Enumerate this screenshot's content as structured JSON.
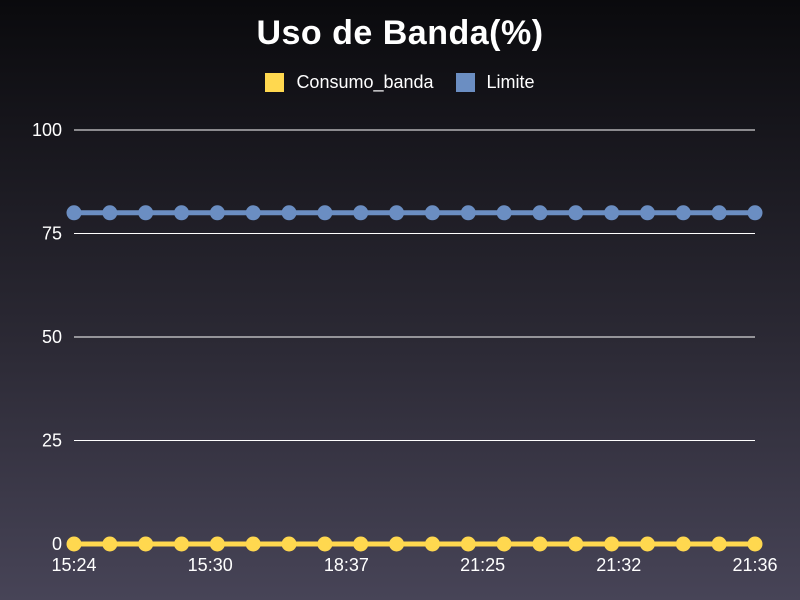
{
  "chart_data": {
    "type": "line",
    "title": "Uso de Banda(%)",
    "xlabel": "",
    "ylabel": "",
    "ylim": [
      0,
      100
    ],
    "yticks": [
      0,
      25,
      50,
      75,
      100
    ],
    "x_tick_labels": [
      "15:24",
      "15:30",
      "18:37",
      "21:25",
      "21:32",
      "21:36"
    ],
    "point_count": 20,
    "grid": true,
    "legend_position": "top-center",
    "series": [
      {
        "name": "Consumo_banda",
        "color": "#ffd84f",
        "values": [
          0,
          0,
          0,
          0,
          0,
          0,
          0,
          0,
          0,
          0,
          0,
          0,
          0,
          0,
          0,
          0,
          0,
          0,
          0,
          0
        ]
      },
      {
        "name": "Limite",
        "color": "#6b8ec2",
        "values": [
          80,
          80,
          80,
          80,
          80,
          80,
          80,
          80,
          80,
          80,
          80,
          80,
          80,
          80,
          80,
          80,
          80,
          80,
          80,
          80
        ]
      }
    ]
  }
}
